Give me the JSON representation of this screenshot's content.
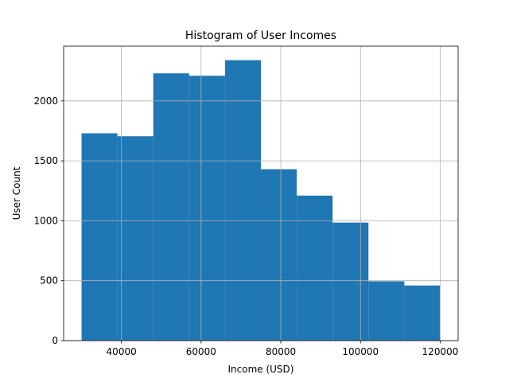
{
  "chart_data": {
    "type": "bar",
    "title": "Histogram of User Incomes",
    "xlabel": "Income (USD)",
    "ylabel": "User Count",
    "bin_edges": [
      30000,
      39000,
      48000,
      57000,
      66000,
      75000,
      84000,
      93000,
      102000,
      111000,
      120000
    ],
    "values": [
      1730,
      1705,
      2230,
      2210,
      2340,
      1430,
      1210,
      985,
      495,
      460
    ],
    "xlim": [
      25500,
      124500
    ],
    "ylim": [
      0,
      2457
    ],
    "xticks": [
      40000,
      60000,
      80000,
      100000,
      120000
    ],
    "xtick_labels": [
      "40000",
      "60000",
      "80000",
      "100000",
      "120000"
    ],
    "yticks": [
      0,
      500,
      1000,
      1500,
      2000
    ],
    "ytick_labels": [
      "0",
      "500",
      "1000",
      "1500",
      "2000"
    ],
    "grid": true,
    "bar_color": "#1f77b4",
    "grid_color": "#b0b0b0"
  }
}
